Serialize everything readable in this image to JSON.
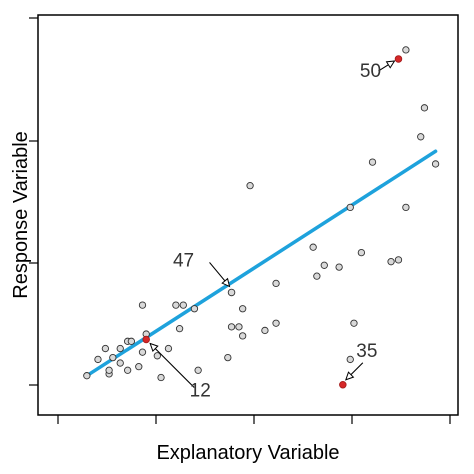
{
  "chart_data": {
    "type": "scatter",
    "title": "",
    "xlabel": "Explanatory Variable",
    "ylabel": "Response Variable",
    "xlim": [
      0,
      1
    ],
    "ylim": [
      0,
      1
    ],
    "grid": false,
    "x_ticks": [
      0.0,
      0.25,
      0.5,
      0.75,
      1.0
    ],
    "y_ticks": [
      0.0,
      0.33,
      0.66,
      1.0
    ],
    "points": {
      "x": [
        0.04,
        0.07,
        0.09,
        0.1,
        0.1,
        0.11,
        0.13,
        0.13,
        0.15,
        0.15,
        0.16,
        0.18,
        0.19,
        0.19,
        0.2,
        0.23,
        0.24,
        0.26,
        0.28,
        0.29,
        0.3,
        0.33,
        0.34,
        0.42,
        0.43,
        0.45,
        0.46,
        0.46,
        0.48,
        0.52,
        0.55,
        0.55,
        0.65,
        0.66,
        0.68,
        0.72,
        0.75,
        0.75,
        0.76,
        0.78,
        0.81,
        0.86,
        0.88,
        0.9,
        0.9,
        0.94,
        0.95,
        0.98
      ],
      "y": [
        0.045,
        0.09,
        0.12,
        0.05,
        0.06,
        0.095,
        0.08,
        0.12,
        0.06,
        0.14,
        0.14,
        0.07,
        0.11,
        0.24,
        0.16,
        0.1,
        0.04,
        0.12,
        0.24,
        0.175,
        0.24,
        0.23,
        0.06,
        0.095,
        0.18,
        0.18,
        0.155,
        0.23,
        0.57,
        0.17,
        0.3,
        0.19,
        0.4,
        0.32,
        0.35,
        0.345,
        0.09,
        0.51,
        0.19,
        0.385,
        0.635,
        0.36,
        0.365,
        0.51,
        0.945,
        0.705,
        0.785,
        0.63
      ],
      "color": "#d9d9d9"
    },
    "highlighted_points": [
      {
        "label": "50",
        "x": 0.88,
        "y": 0.92,
        "color": "#d62728"
      },
      {
        "label": "47",
        "x": 0.43,
        "y": 0.275,
        "color": "#d9d9d9"
      },
      {
        "label": "12",
        "x": 0.2,
        "y": 0.145,
        "color": "#d62728"
      },
      {
        "label": "35",
        "x": 0.73,
        "y": 0.02,
        "color": "#d62728"
      }
    ],
    "fit_line": {
      "x": [
        0.04,
        0.98
      ],
      "y": [
        0.045,
        0.665
      ],
      "color": "#1ea2dc"
    }
  }
}
